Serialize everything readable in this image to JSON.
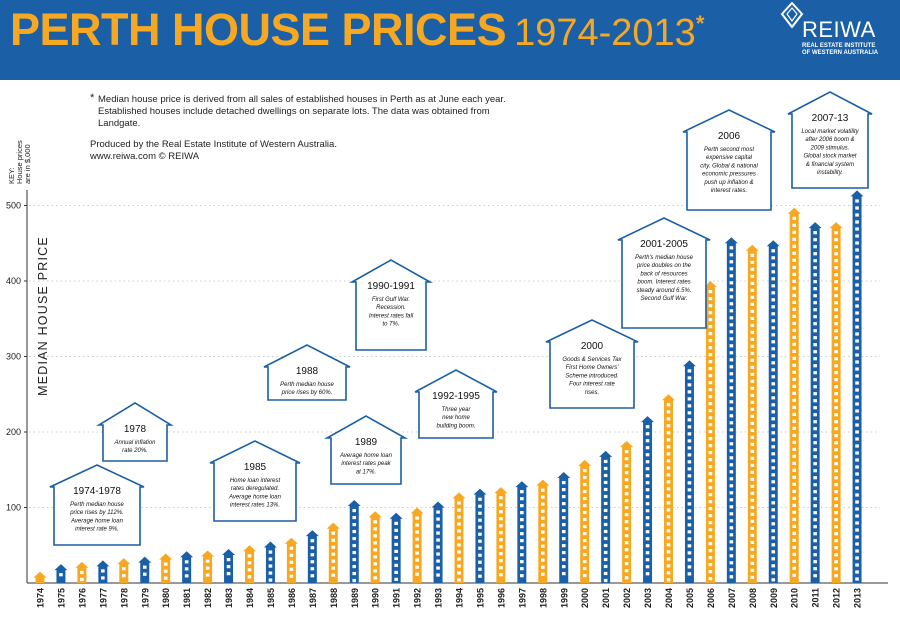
{
  "header": {
    "title_main": "PERTH HOUSE PRICES",
    "title_years": "1974-2013",
    "title_star": "*"
  },
  "logo": {
    "name": "REIWA",
    "sub_line1": "REAL ESTATE INSTITUTE",
    "sub_line2": "OF WESTERN AUSTRALIA"
  },
  "notes": {
    "star": "*",
    "text": "Median house price is derived from all sales of established houses in Perth as at June each year. Established houses include detached dwellings on separate lots. The data was obtained from Landgate.",
    "credit": "Produced by the Real Estate Institute of Western Australia.",
    "web": "www.reiwa.com    © REIWA"
  },
  "key": {
    "line1": "KEY:",
    "line2": "House prices",
    "line3": "are in $,000"
  },
  "colors": {
    "blue": "#1b5fa6",
    "orange": "#f7a823",
    "callout_border": "#1b5fa6",
    "text": "#222222"
  },
  "chart_data": {
    "type": "bar",
    "title": "PERTH HOUSE PRICES 1974-2013",
    "xlabel": "",
    "ylabel": "MEDIAN HOUSE PRICE",
    "ylim": [
      0,
      535
    ],
    "yticks": [
      100,
      200,
      300,
      400,
      500
    ],
    "categories": [
      "1974",
      "1975",
      "1976",
      "1977",
      "1978",
      "1979",
      "1980",
      "1981",
      "1982",
      "1983",
      "1984",
      "1985",
      "1986",
      "1987",
      "1988",
      "1989",
      "1990",
      "1991",
      "1992",
      "1993",
      "1994",
      "1995",
      "1996",
      "1997",
      "1998",
      "1999",
      "2000",
      "2001",
      "2002",
      "2003",
      "2004",
      "2005",
      "2006",
      "2007",
      "2008",
      "2009",
      "2010",
      "2011",
      "2012",
      "2013"
    ],
    "values": [
      15,
      25,
      28,
      30,
      33,
      35,
      39,
      42,
      43,
      45,
      50,
      55,
      60,
      70,
      80,
      110,
      95,
      93,
      100,
      108,
      120,
      125,
      127,
      135,
      137,
      147,
      163,
      175,
      188,
      221,
      250,
      295,
      400,
      458,
      448,
      454,
      497,
      478,
      478,
      520
    ],
    "bar_colors": [
      "orange",
      "blue",
      "orange",
      "blue",
      "orange",
      "blue",
      "orange",
      "blue",
      "orange",
      "blue",
      "orange",
      "blue",
      "orange",
      "blue",
      "orange",
      "blue",
      "orange",
      "blue",
      "orange",
      "blue",
      "orange",
      "blue",
      "orange",
      "blue",
      "orange",
      "blue",
      "orange",
      "blue",
      "orange",
      "blue",
      "orange",
      "blue",
      "orange",
      "blue",
      "orange",
      "blue",
      "orange",
      "blue",
      "orange",
      "blue"
    ],
    "annotations": [
      {
        "title": "1974-1978",
        "lines": [
          "Perth median house",
          "price rises by 112%.",
          "Average home loan",
          "interest rate 9%."
        ]
      },
      {
        "title": "1978",
        "lines": [
          "Annual inflation",
          "rate 20%."
        ]
      },
      {
        "title": "1985",
        "lines": [
          "Home loan interest",
          "rates deregulated.",
          "Average home loan",
          "interest rates 13%."
        ]
      },
      {
        "title": "1988",
        "lines": [
          "Perth median house",
          "price rises by 60%."
        ]
      },
      {
        "title": "1989",
        "lines": [
          "Average home loan",
          "interest rates peak",
          "at 17%."
        ]
      },
      {
        "title": "1990-1991",
        "lines": [
          "First Gulf War.",
          "Recession.",
          "Interest rates fall",
          "to 7%."
        ]
      },
      {
        "title": "1992-1995",
        "lines": [
          "Three year",
          "new home",
          "building boom."
        ]
      },
      {
        "title": "2000",
        "lines": [
          "Goods & Services Tax",
          "First Home Owners'",
          "Scheme introduced.",
          "Four interest rate",
          "rises."
        ]
      },
      {
        "title": "2001-2005",
        "lines": [
          "Perth's median house",
          "price doubles on the",
          "back of resources",
          "boom. Interest rates",
          "steady around 6.5%.",
          "Second Gulf War."
        ]
      },
      {
        "title": "2006",
        "lines": [
          "Perth second most",
          "expensive capital",
          "city. Global & national",
          "economic pressures",
          "push up inflation &",
          "interest rates."
        ]
      },
      {
        "title": "2007-13",
        "lines": [
          "Local market volatility",
          "after 2006 boom &",
          "2009 stimulus.",
          "Global stock market",
          "& financial system",
          "instability."
        ]
      }
    ]
  }
}
